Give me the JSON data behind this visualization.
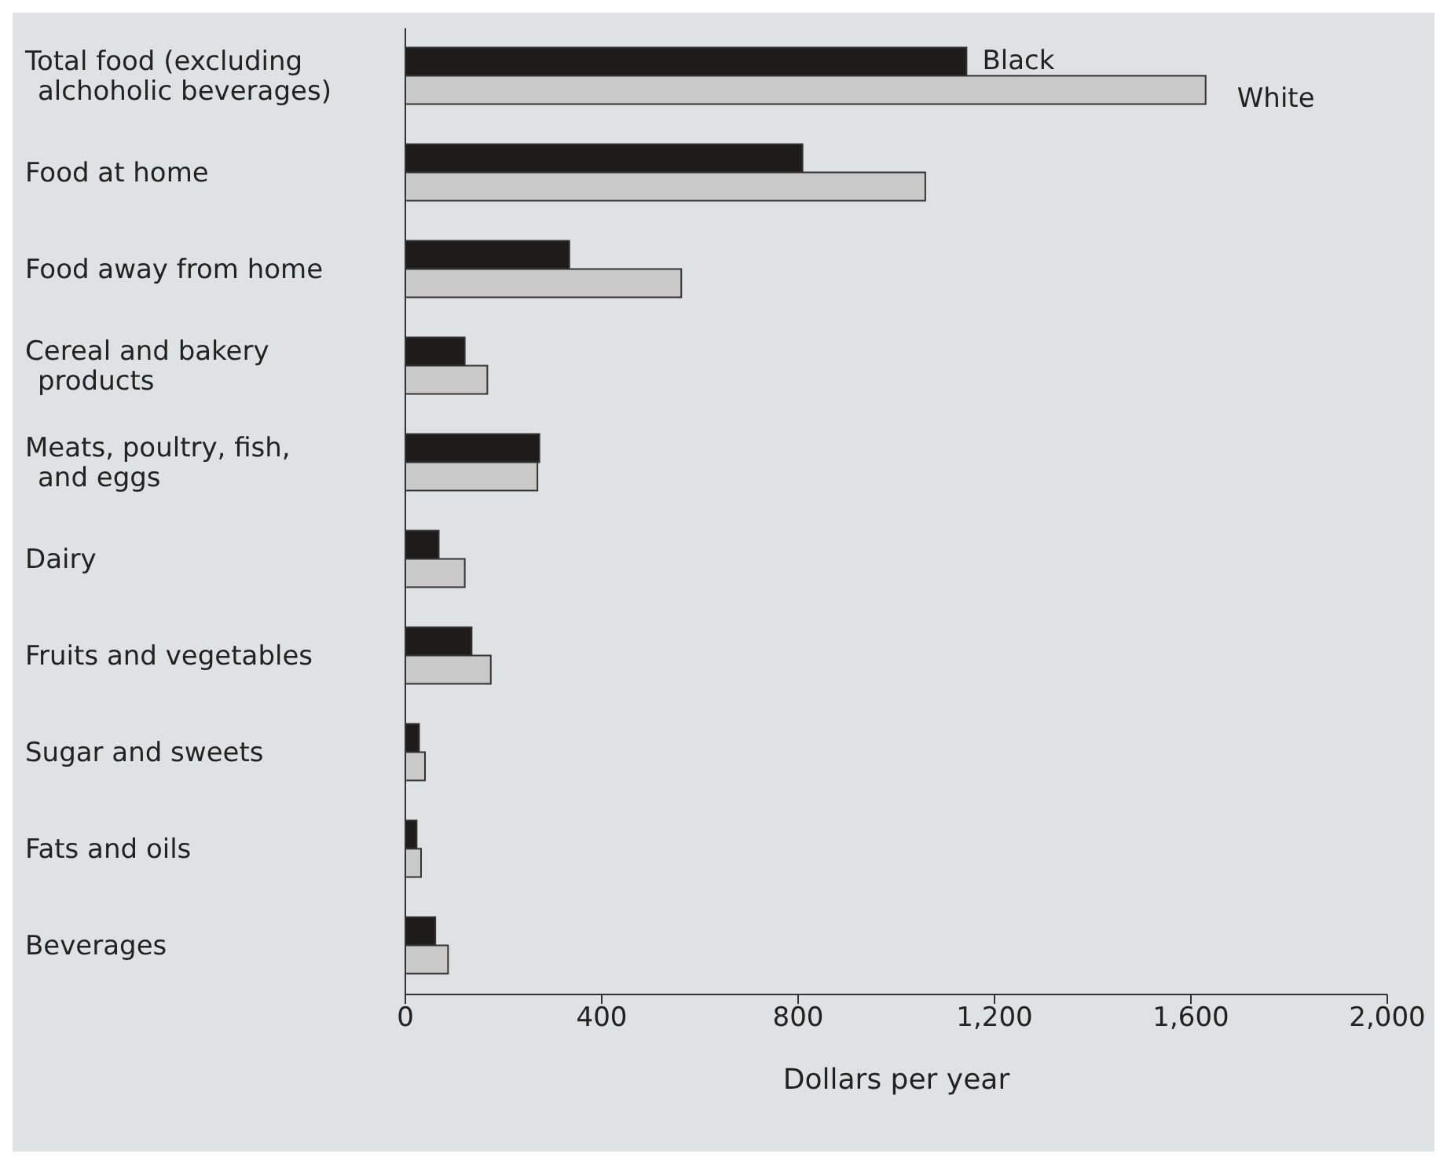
{
  "chart_data": {
    "type": "bar",
    "orientation": "horizontal",
    "xlabel": "Dollars per year",
    "categories": [
      "Total food (excluding alchoholic beverages)",
      "Food at home",
      "Food away from home",
      "Cereal and bakery products",
      "Meats, poultry, fish, and eggs",
      "Dairy",
      "Fruits and vegetables",
      "Sugar and sweets",
      "Fats and oils",
      "Beverages"
    ],
    "series": [
      {
        "name": "Black",
        "color": "#1e1b1b",
        "values": [
          1143,
          809,
          334,
          121,
          273,
          68,
          135,
          28,
          23,
          61
        ]
      },
      {
        "name": "White",
        "color": "#c9c9c9",
        "values": [
          1630,
          1059,
          562,
          167,
          269,
          121,
          174,
          40,
          32,
          87
        ]
      }
    ],
    "xlim": [
      0,
      2000
    ],
    "xticks": [
      0,
      {
        "value": 400,
        "label": "400"
      },
      {
        "value": 800,
        "label": "800"
      },
      {
        "value": 1200,
        "label": "1,200"
      },
      {
        "value": 1600,
        "label": "1,600"
      },
      {
        "value": 2000,
        "label": "2,000"
      }
    ],
    "grid": false,
    "legend": false
  }
}
